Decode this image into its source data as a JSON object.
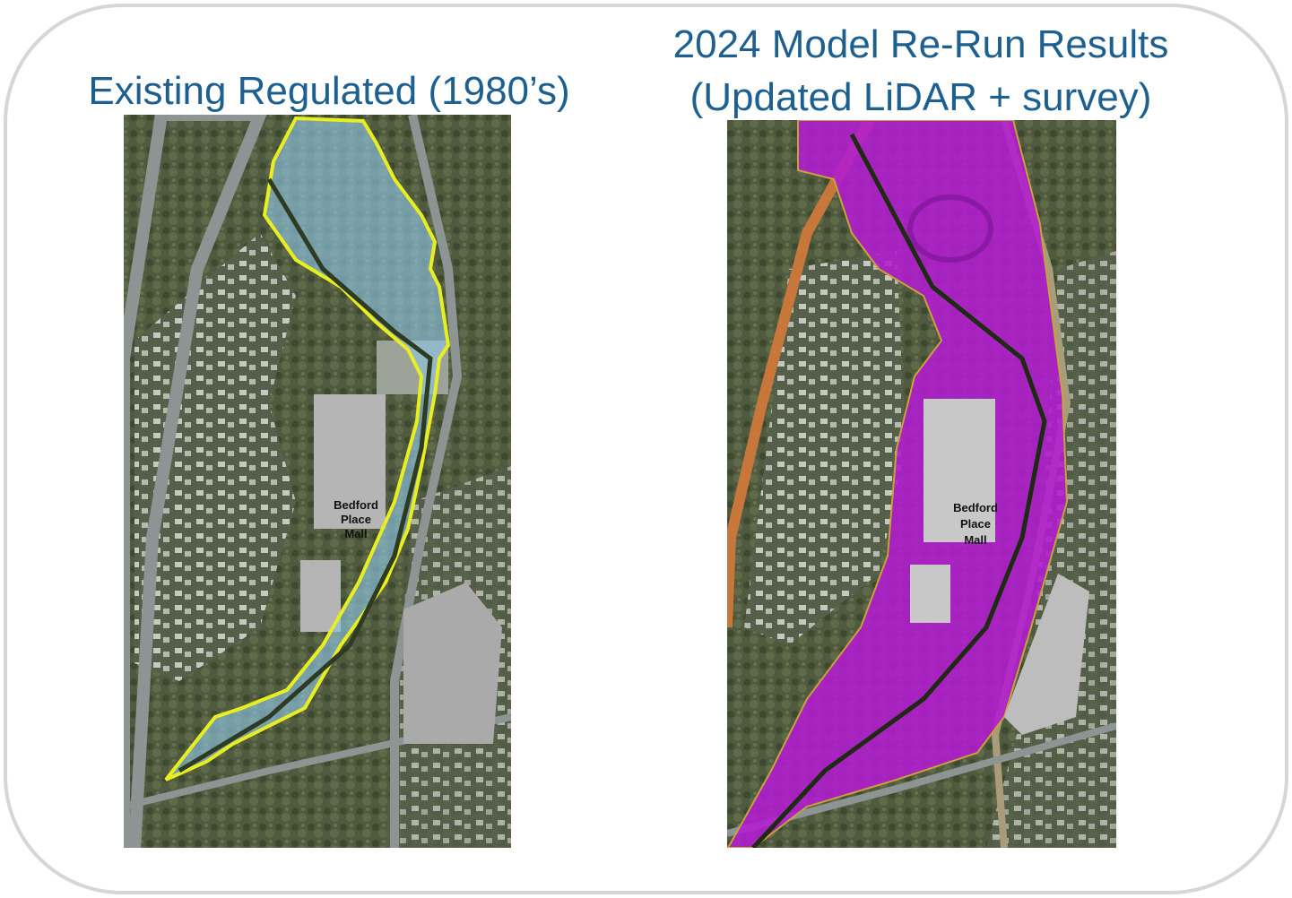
{
  "panels": [
    {
      "title": [
        "Existing Regulated (1980’s)"
      ],
      "map_label": [
        "Bedford",
        "Place",
        "Mall"
      ]
    },
    {
      "title": [
        "2024 Model Re-Run Results",
        "(Updated LiDAR + survey)"
      ],
      "map_label": [
        "Bedford",
        "Place",
        "Mall"
      ]
    }
  ]
}
